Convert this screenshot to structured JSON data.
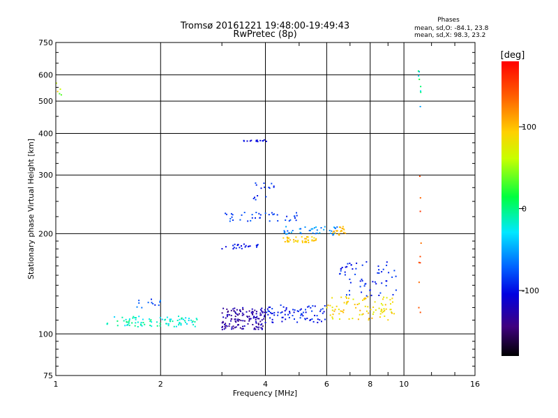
{
  "chart_data": {
    "type": "scatter",
    "title": "Tromsø 20161221 19:48:00-19:49:43",
    "subtitle": "RwPretec (8p)",
    "xlabel": "Frequency [MHz]",
    "ylabel": "Stationary phase Virtual Height [km]",
    "x_scale": "log",
    "y_scale": "log",
    "xlim": [
      1,
      16
    ],
    "ylim": [
      75,
      750
    ],
    "x_ticks": [
      1,
      2,
      4,
      6,
      8,
      10,
      16
    ],
    "y_ticks": [
      75,
      100,
      200,
      300,
      400,
      500,
      600,
      750
    ],
    "x_grid": [
      2,
      4,
      6,
      8,
      10
    ],
    "y_grid": [
      100,
      200,
      300,
      400,
      500,
      600
    ],
    "grid": true,
    "stats": {
      "header": "Phases",
      "o_line": "mean, sd,O: -84.1, 23.8",
      "x_line": "mean, sd,X: 98.3, 23.2"
    },
    "colorbar": {
      "label": "[deg]",
      "range": [
        -180,
        180
      ],
      "ticks": [
        100,
        0,
        -100
      ],
      "tick_labels": [
        "100",
        "0",
        "-100"
      ]
    },
    "clusters": [
      {
        "f": [
          1.4,
          2.55
        ],
        "h": [
          105,
          113
        ],
        "phase": [
          -40,
          5
        ],
        "n": 90
      },
      {
        "f": [
          1.7,
          2.0
        ],
        "h": [
          118,
          128
        ],
        "phase": [
          -100,
          -50
        ],
        "n": 12
      },
      {
        "f": [
          3.0,
          4.0
        ],
        "h": [
          103,
          120
        ],
        "phase": [
          -150,
          -110
        ],
        "n": 140
      },
      {
        "f": [
          4.0,
          6.0
        ],
        "h": [
          108,
          122
        ],
        "phase": [
          -110,
          -80
        ],
        "n": 80
      },
      {
        "f": [
          6.0,
          9.5
        ],
        "h": [
          110,
          130
        ],
        "phase": [
          70,
          110
        ],
        "n": 90
      },
      {
        "f": [
          6.5,
          9.5
        ],
        "h": [
          130,
          165
        ],
        "phase": [
          -105,
          -80
        ],
        "n": 60
      },
      {
        "f": [
          3.0,
          4.0
        ],
        "h": [
          180,
          186
        ],
        "phase": [
          -110,
          -90
        ],
        "n": 25
      },
      {
        "f": [
          4.5,
          5.6
        ],
        "h": [
          188,
          196
        ],
        "phase": [
          85,
          110
        ],
        "n": 45
      },
      {
        "f": [
          3.0,
          5.0
        ],
        "h": [
          218,
          232
        ],
        "phase": [
          -95,
          -70
        ],
        "n": 40
      },
      {
        "f": [
          4.5,
          6.6
        ],
        "h": [
          198,
          210
        ],
        "phase": [
          -80,
          -40
        ],
        "n": 40
      },
      {
        "f": [
          6.2,
          6.8
        ],
        "h": [
          198,
          210
        ],
        "phase": [
          95,
          115
        ],
        "n": 20
      },
      {
        "f": [
          3.7,
          4.3
        ],
        "h": [
          250,
          290
        ],
        "phase": [
          -100,
          -80
        ],
        "n": 15
      },
      {
        "f": [
          3.4,
          4.1
        ],
        "h": [
          378,
          383
        ],
        "phase": [
          -110,
          -95
        ],
        "n": 14
      },
      {
        "f": [
          1.0,
          1.05
        ],
        "h": [
          520,
          580
        ],
        "phase": [
          20,
          110
        ],
        "n": 5
      },
      {
        "f": [
          11.0,
          11.2
        ],
        "h": [
          470,
          620
        ],
        "phase": [
          -60,
          20
        ],
        "n": 8
      },
      {
        "f": [
          11.0,
          11.2
        ],
        "h": [
          110,
          300
        ],
        "phase": [
          130,
          160
        ],
        "n": 10
      }
    ]
  }
}
